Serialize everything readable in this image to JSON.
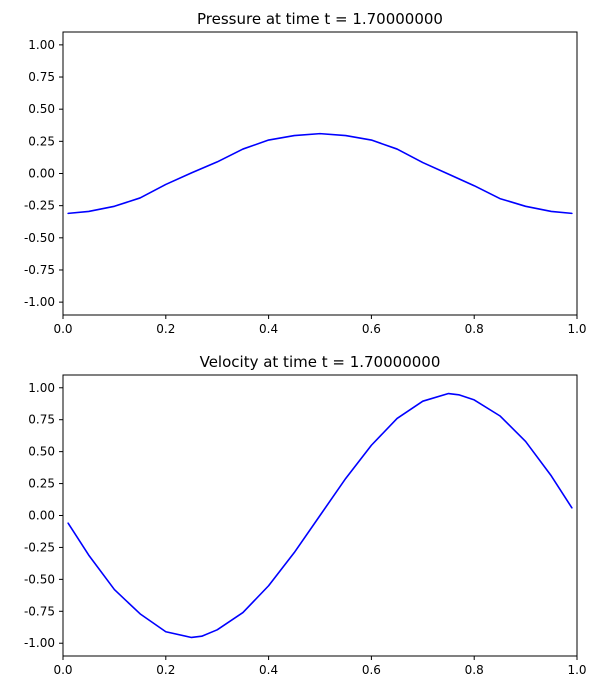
{
  "chart_data": [
    {
      "type": "line",
      "title": "Pressure at time t =     1.70000000",
      "xlabel": "",
      "ylabel": "",
      "xlim": [
        0.0,
        1.0
      ],
      "ylim": [
        -1.1,
        1.1
      ],
      "xticks": [
        "0.0",
        "0.2",
        "0.4",
        "0.6",
        "0.8",
        "1.0"
      ],
      "yticks": [
        "-1.00",
        "-0.75",
        "-0.50",
        "-0.25",
        "0.00",
        "0.25",
        "0.50",
        "0.75",
        "1.00"
      ],
      "grid": false,
      "color": "#0000ff",
      "series": [
        {
          "x": [
            0.01,
            0.05,
            0.1,
            0.15,
            0.2,
            0.25,
            0.3,
            0.35,
            0.4,
            0.45,
            0.5,
            0.55,
            0.6,
            0.65,
            0.7,
            0.75,
            0.8,
            0.85,
            0.9,
            0.95,
            0.99
          ],
          "y": [
            -0.31,
            -0.295,
            -0.255,
            -0.19,
            -0.085,
            0.005,
            0.09,
            0.19,
            0.26,
            0.295,
            0.31,
            0.295,
            0.26,
            0.19,
            0.085,
            -0.005,
            -0.095,
            -0.195,
            -0.255,
            -0.295,
            -0.31
          ]
        }
      ]
    },
    {
      "type": "line",
      "title": "Velocity at time t =     1.70000000",
      "xlabel": "",
      "ylabel": "",
      "xlim": [
        0.0,
        1.0
      ],
      "ylim": [
        -1.1,
        1.1
      ],
      "xticks": [
        "0.0",
        "0.2",
        "0.4",
        "0.6",
        "0.8",
        "1.0"
      ],
      "yticks": [
        "-1.00",
        "-0.75",
        "-0.50",
        "-0.25",
        "0.00",
        "0.25",
        "0.50",
        "0.75",
        "1.00"
      ],
      "grid": false,
      "color": "#0000ff",
      "series": [
        {
          "x": [
            0.01,
            0.05,
            0.1,
            0.15,
            0.2,
            0.25,
            0.27,
            0.3,
            0.35,
            0.4,
            0.45,
            0.5,
            0.55,
            0.6,
            0.65,
            0.7,
            0.75,
            0.77,
            0.8,
            0.85,
            0.9,
            0.95,
            0.99
          ],
          "y": [
            -0.06,
            -0.31,
            -0.58,
            -0.77,
            -0.91,
            -0.955,
            -0.945,
            -0.895,
            -0.76,
            -0.55,
            -0.29,
            0.0,
            0.29,
            0.55,
            0.76,
            0.895,
            0.955,
            0.945,
            0.905,
            0.78,
            0.58,
            0.31,
            0.06
          ]
        }
      ]
    }
  ]
}
